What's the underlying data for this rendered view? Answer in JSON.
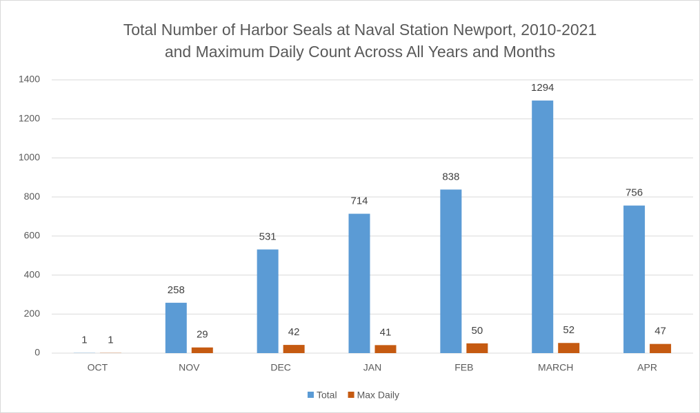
{
  "chart_data": {
    "type": "bar",
    "title": [
      "Total Number of Harbor Seals at Naval Station Newport, 2010-2021",
      "and Maximum Daily Count Across All Years and Months"
    ],
    "categories": [
      "OCT",
      "NOV",
      "DEC",
      "JAN",
      "FEB",
      "MARCH",
      "APR"
    ],
    "series": [
      {
        "name": "Total",
        "color": "#5b9bd5",
        "values": [
          1,
          258,
          531,
          714,
          838,
          1294,
          756
        ]
      },
      {
        "name": "Max Daily",
        "color": "#c55a11",
        "values": [
          1,
          29,
          42,
          41,
          50,
          52,
          47
        ]
      }
    ],
    "ylim": [
      0,
      1400
    ],
    "yticks": [
      0,
      200,
      400,
      600,
      800,
      1000,
      1200,
      1400
    ],
    "grid": true,
    "legend": "bottom"
  }
}
